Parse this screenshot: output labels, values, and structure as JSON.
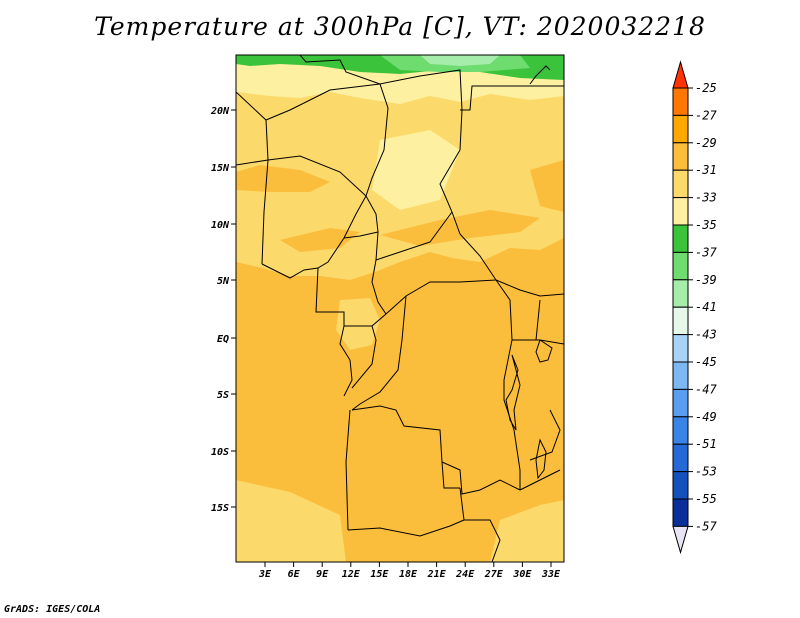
{
  "title": "Temperature at 300hPa [C], VT: 2020032218",
  "credit": "GrADS: IGES/COLA",
  "map": {
    "lat_labels": [
      "20N",
      "15N",
      "10N",
      "5N",
      "EQ",
      "5S",
      "10S",
      "15S"
    ],
    "lon_labels": [
      "3E",
      "6E",
      "9E",
      "12E",
      "15E",
      "18E",
      "21E",
      "24E",
      "27E",
      "30E",
      "33E"
    ]
  },
  "colorbar": {
    "labels": [
      "-25",
      "-27",
      "-29",
      "-31",
      "-33",
      "-35",
      "-37",
      "-39",
      "-41",
      "-43",
      "-45",
      "-47",
      "-49",
      "-51",
      "-53",
      "-55",
      "-57"
    ],
    "colors": [
      "#ff3300",
      "#ff7700",
      "#ffa800",
      "#fbbd3c",
      "#fbd96a",
      "#fdf0a0",
      "#3bc43b",
      "#6edc6e",
      "#a6ecaa",
      "#e6f8ea",
      "#a8d2f6",
      "#7eb8f2",
      "#5a9ef0",
      "#3a84e8",
      "#2569d6",
      "#1451bc",
      "#0a2f9a",
      "#051a70"
    ]
  },
  "colors": {
    "t_29_31": "#fbbd3c",
    "t_31_33": "#fbd96a",
    "t_33_35": "#fdf0a0",
    "t_35_37": "#3bc43b",
    "t_37_39": "#6edc6e",
    "t_39_41": "#a6ecaa"
  }
}
